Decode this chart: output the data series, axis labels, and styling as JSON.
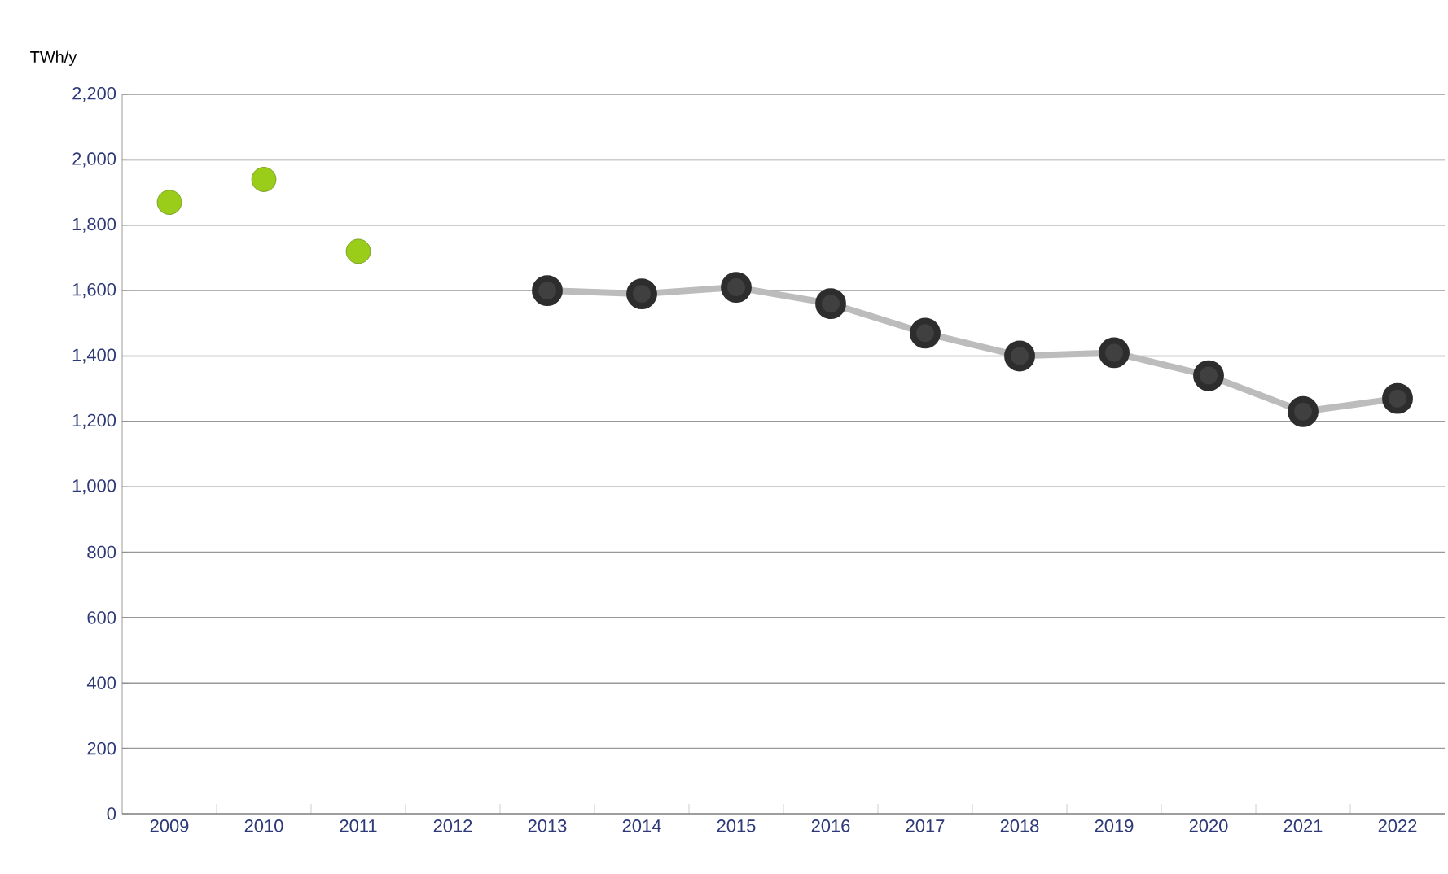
{
  "chart_data": {
    "type": "line",
    "ylabel": "TWh/y",
    "categories": [
      "2009",
      "2010",
      "2011",
      "2012",
      "2013",
      "2014",
      "2015",
      "2016",
      "2017",
      "2018",
      "2019",
      "2020",
      "2021",
      "2022"
    ],
    "series": [
      {
        "type": "scatter",
        "color": "#9acd1a",
        "values": [
          1870,
          1940,
          1720,
          null,
          null,
          null,
          null,
          null,
          null,
          null,
          null,
          null,
          null,
          null
        ]
      },
      {
        "color": "#404040",
        "values": [
          null,
          null,
          null,
          null,
          1600,
          1590,
          1610,
          1560,
          1470,
          1400,
          1410,
          1340,
          1230,
          1270
        ]
      }
    ],
    "ylim": [
      0,
      2200
    ],
    "yticks": [
      {
        "value": 0,
        "label": "0"
      },
      {
        "value": 200,
        "label": "200"
      },
      {
        "value": 400,
        "label": "400"
      },
      {
        "value": 600,
        "label": "600"
      },
      {
        "value": 800,
        "label": "800"
      },
      {
        "value": 1000,
        "label": "1,000"
      },
      {
        "value": 1200,
        "label": "1,200"
      },
      {
        "value": 1400,
        "label": "1,400"
      },
      {
        "value": 1600,
        "label": "1,600"
      },
      {
        "value": 1800,
        "label": "1,800"
      },
      {
        "value": 2000,
        "label": "2,000"
      },
      {
        "value": 2200,
        "label": "2,200"
      }
    ],
    "grid": "y",
    "marker": "circle"
  }
}
